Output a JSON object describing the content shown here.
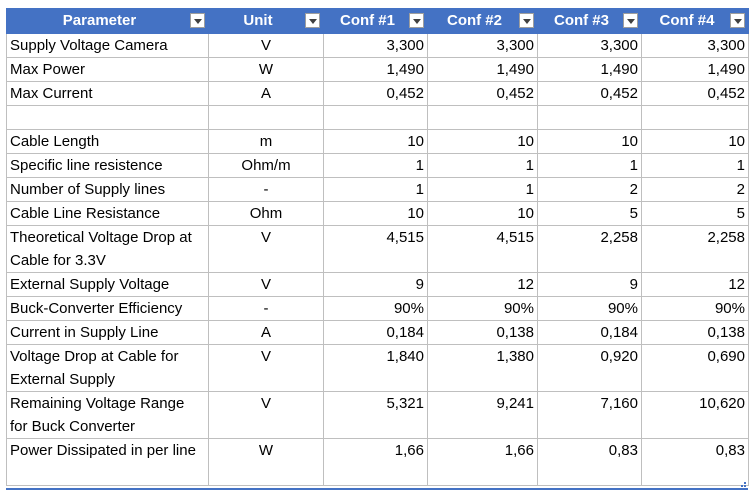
{
  "headers": [
    "Parameter",
    "Unit",
    "Conf #1",
    "Conf #2",
    "Conf #3",
    "Conf #4"
  ],
  "rows": [
    {
      "param": "Supply Voltage Camera",
      "unit": "V",
      "values": [
        "3,300",
        "3,300",
        "3,300",
        "3,300"
      ]
    },
    {
      "param": "Max Power",
      "unit": "W",
      "values": [
        "1,490",
        "1,490",
        "1,490",
        "1,490"
      ]
    },
    {
      "param": "Max Current",
      "unit": "A",
      "values": [
        "0,452",
        "0,452",
        "0,452",
        "0,452"
      ]
    },
    {
      "param": "",
      "unit": "",
      "values": [
        "",
        "",
        "",
        ""
      ]
    },
    {
      "param": "Cable Length",
      "unit": "m",
      "values": [
        "10",
        "10",
        "10",
        "10"
      ]
    },
    {
      "param": "Specific line resistence",
      "unit": "Ohm/m",
      "values": [
        "1",
        "1",
        "1",
        "1"
      ]
    },
    {
      "param": "Number of Supply lines",
      "unit": "-",
      "values": [
        "1",
        "1",
        "2",
        "2"
      ]
    },
    {
      "param": "Cable Line Resistance",
      "unit": "Ohm",
      "values": [
        "10",
        "10",
        "5",
        "5"
      ]
    },
    {
      "param": "Theoretical Voltage Drop at Cable for 3.3V",
      "unit": "V",
      "values": [
        "4,515",
        "4,515",
        "2,258",
        "2,258"
      ]
    },
    {
      "param": "External Supply Voltage",
      "unit": "V",
      "values": [
        "9",
        "12",
        "9",
        "12"
      ]
    },
    {
      "param": "Buck-Converter Efficiency",
      "unit": "-",
      "values": [
        "90%",
        "90%",
        "90%",
        "90%"
      ]
    },
    {
      "param": "Current in Supply Line",
      "unit": "A",
      "values": [
        "0,184",
        "0,138",
        "0,184",
        "0,138"
      ]
    },
    {
      "param": "Voltage Drop at Cable for External Supply",
      "unit": "V",
      "values": [
        "1,840",
        "1,380",
        "0,920",
        "0,690"
      ]
    },
    {
      "param": "Remaining Voltage Range for Buck Converter",
      "unit": "V",
      "values": [
        "5,321",
        "9,241",
        "7,160",
        "10,620"
      ]
    },
    {
      "param": "Power Dissipated in per line",
      "unit": "W",
      "values": [
        "1,66",
        "1,66",
        "0,83",
        "0,83"
      ]
    }
  ]
}
